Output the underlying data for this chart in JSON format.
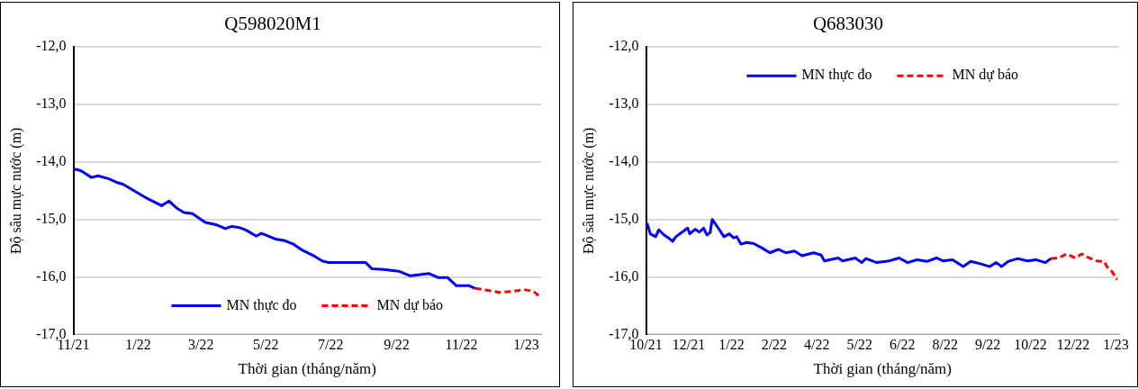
{
  "chart_data": [
    {
      "type": "line",
      "title": "Q598020M1",
      "xlabel": "Thời gian (tháng/năm)",
      "ylabel": "Độ sâu mực nước (m)",
      "grid": "y",
      "legend": "bottom",
      "xlim": [
        "2021-11-01",
        "2023-01-15"
      ],
      "xticks": [
        {
          "value": "2021-11-01",
          "label": "11/21"
        },
        {
          "value": "2022-01-01",
          "label": "1/22"
        },
        {
          "value": "2022-03-01",
          "label": "3/22"
        },
        {
          "value": "2022-05-01",
          "label": "5/22"
        },
        {
          "value": "2022-07-01",
          "label": "7/22"
        },
        {
          "value": "2022-09-01",
          "label": "9/22"
        },
        {
          "value": "2022-11-01",
          "label": "11/22"
        },
        {
          "value": "2023-01-01",
          "label": "1/23"
        }
      ],
      "ylim": [
        -17,
        -12
      ],
      "yticks": [
        {
          "value": -17,
          "label": "-17,0"
        },
        {
          "value": -16,
          "label": "-16,0"
        },
        {
          "value": -15,
          "label": "-15,0"
        },
        {
          "value": -14,
          "label": "-14,0"
        },
        {
          "value": -13,
          "label": "-13,0"
        },
        {
          "value": -12,
          "label": "-12,0"
        }
      ],
      "series": [
        {
          "name": "MN thực đo",
          "color": "#0000ff",
          "line_style": "solid",
          "x": [
            "2021-11-01",
            "2021-11-08",
            "2021-11-18",
            "2021-11-24",
            "2021-12-04",
            "2021-12-11",
            "2021-12-18",
            "2022-01-07",
            "2022-01-23",
            "2022-01-30",
            "2022-02-06",
            "2022-02-13",
            "2022-02-21",
            "2022-03-05",
            "2022-03-15",
            "2022-03-24",
            "2022-03-30",
            "2022-04-06",
            "2022-04-13",
            "2022-04-22",
            "2022-04-27",
            "2022-05-10",
            "2022-05-19",
            "2022-05-27",
            "2022-06-04",
            "2022-06-14",
            "2022-06-23",
            "2022-06-29",
            "2022-08-03",
            "2022-08-09",
            "2022-08-20",
            "2022-09-03",
            "2022-09-14",
            "2022-09-23",
            "2022-10-01",
            "2022-10-10",
            "2022-10-19",
            "2022-10-27",
            "2022-11-08",
            "2022-11-14"
          ],
          "values": [
            -14.12,
            -14.15,
            -14.27,
            -14.24,
            -14.29,
            -14.35,
            -14.39,
            -14.61,
            -14.76,
            -14.68,
            -14.8,
            -14.88,
            -14.9,
            -15.05,
            -15.09,
            -15.16,
            -15.12,
            -15.14,
            -15.19,
            -15.29,
            -15.24,
            -15.34,
            -15.37,
            -15.43,
            -15.53,
            -15.62,
            -15.72,
            -15.75,
            -15.75,
            -15.86,
            -15.87,
            -15.9,
            -15.98,
            -15.96,
            -15.94,
            -16.01,
            -16.01,
            -16.15,
            -16.15,
            -16.2
          ]
        },
        {
          "name": "MN dự báo",
          "color": "#ff0000",
          "line_style": "dashed",
          "x": [
            "2022-11-14",
            "2022-11-25",
            "2022-12-07",
            "2022-12-19",
            "2022-12-30",
            "2023-01-08",
            "2023-01-14"
          ],
          "values": [
            -16.2,
            -16.23,
            -16.27,
            -16.25,
            -16.22,
            -16.25,
            -16.35
          ]
        }
      ]
    },
    {
      "type": "line",
      "title": "Q683030",
      "xlabel": "Thời gian (tháng/năm)",
      "ylabel": "Độ sâu mực nước (m)",
      "grid": "y",
      "legend": "top",
      "xlim": [
        "2021-10-28",
        "2023-01-14"
      ],
      "xticks": [
        {
          "value": "2021-10-28",
          "label": "10/21"
        },
        {
          "value": "2021-12-07",
          "label": "12/21"
        },
        {
          "value": "2022-01-16",
          "label": "1/22"
        },
        {
          "value": "2022-02-25",
          "label": "2/22"
        },
        {
          "value": "2022-04-06",
          "label": "4/22"
        },
        {
          "value": "2022-05-16",
          "label": "5/22"
        },
        {
          "value": "2022-06-25",
          "label": "6/22"
        },
        {
          "value": "2022-08-04",
          "label": "8/22"
        },
        {
          "value": "2022-09-13",
          "label": "9/22"
        },
        {
          "value": "2022-10-23",
          "label": "10/22"
        },
        {
          "value": "2022-12-02",
          "label": "12/22"
        },
        {
          "value": "2023-01-11",
          "label": "1/23"
        }
      ],
      "ylim": [
        -17,
        -12
      ],
      "yticks": [
        {
          "value": -17,
          "label": "-17,0"
        },
        {
          "value": -16,
          "label": "-16,0"
        },
        {
          "value": -15,
          "label": "-15,0"
        },
        {
          "value": -14,
          "label": "-14,0"
        },
        {
          "value": -13,
          "label": "-13,0"
        },
        {
          "value": -12,
          "label": "-12,0"
        }
      ],
      "series": [
        {
          "name": "MN thực đo",
          "color": "#0000ff",
          "line_style": "solid",
          "x": [
            "2021-10-29",
            "2021-11-01",
            "2021-11-06",
            "2021-11-09",
            "2021-11-14",
            "2021-11-18",
            "2021-11-22",
            "2021-11-25",
            "2021-12-06",
            "2021-12-08",
            "2021-12-13",
            "2021-12-17",
            "2021-12-21",
            "2021-12-24",
            "2021-12-27",
            "2021-12-29",
            "2022-01-03",
            "2022-01-09",
            "2022-01-14",
            "2022-01-18",
            "2022-01-21",
            "2022-01-25",
            "2022-01-30",
            "2022-02-06",
            "2022-02-14",
            "2022-02-21",
            "2022-03-01",
            "2022-03-08",
            "2022-03-16",
            "2022-03-23",
            "2022-04-03",
            "2022-04-10",
            "2022-04-13",
            "2022-04-26",
            "2022-04-30",
            "2022-05-12",
            "2022-05-18",
            "2022-05-22",
            "2022-06-01",
            "2022-06-13",
            "2022-06-22",
            "2022-06-30",
            "2022-07-09",
            "2022-07-18",
            "2022-07-27",
            "2022-08-02",
            "2022-08-11",
            "2022-08-21",
            "2022-08-28",
            "2022-09-06",
            "2022-09-15",
            "2022-09-21",
            "2022-09-26",
            "2022-10-02",
            "2022-10-11",
            "2022-10-20",
            "2022-10-28",
            "2022-11-06",
            "2022-11-11"
          ],
          "values": [
            -15.06,
            -15.25,
            -15.3,
            -15.18,
            -15.27,
            -15.32,
            -15.38,
            -15.3,
            -15.15,
            -15.25,
            -15.17,
            -15.22,
            -15.15,
            -15.27,
            -15.23,
            -15.0,
            -15.13,
            -15.3,
            -15.25,
            -15.32,
            -15.3,
            -15.43,
            -15.4,
            -15.42,
            -15.5,
            -15.58,
            -15.52,
            -15.58,
            -15.55,
            -15.63,
            -15.58,
            -15.62,
            -15.72,
            -15.67,
            -15.72,
            -15.67,
            -15.75,
            -15.68,
            -15.75,
            -15.72,
            -15.67,
            -15.75,
            -15.7,
            -15.73,
            -15.67,
            -15.72,
            -15.7,
            -15.82,
            -15.73,
            -15.77,
            -15.82,
            -15.75,
            -15.82,
            -15.73,
            -15.68,
            -15.72,
            -15.7,
            -15.75,
            -15.68
          ]
        },
        {
          "name": "MN dự báo",
          "color": "#ff0000",
          "line_style": "dashed",
          "x": [
            "2022-11-11",
            "2022-11-18",
            "2022-11-26",
            "2022-12-04",
            "2022-12-10",
            "2022-12-17",
            "2022-12-24",
            "2022-12-31",
            "2023-01-03",
            "2023-01-08",
            "2023-01-12"
          ],
          "values": [
            -15.68,
            -15.67,
            -15.6,
            -15.67,
            -15.6,
            -15.67,
            -15.72,
            -15.73,
            -15.83,
            -15.92,
            -16.05
          ]
        }
      ]
    }
  ]
}
